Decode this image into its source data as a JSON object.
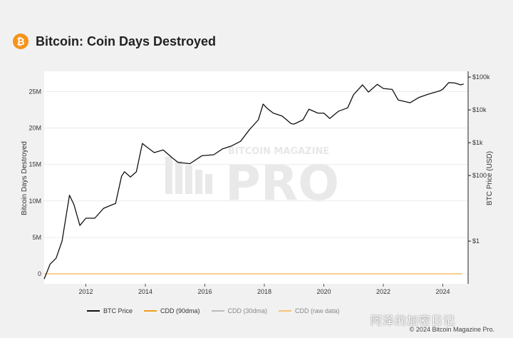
{
  "header": {
    "logo_symbol": "₿",
    "title": "Bitcoin: Coin Days Destroyed"
  },
  "watermark": {
    "brand_top": "BITCOIN MAGAZINE",
    "brand_main": "PRO",
    "social": "阿泽的加密日记"
  },
  "footer": {
    "copyright": "© 2024 Bitcoin Magazine Pro."
  },
  "colors": {
    "btc_price": "#111111",
    "cdd90": "#f2a01c",
    "cdd30": "#bbbbbb",
    "cdd_raw": "#f5c27a",
    "accent": "#f7931a"
  },
  "legend": [
    {
      "label": "BTC Price",
      "color": "#111111"
    },
    {
      "label": "CDD (90dma)",
      "color": "#f2a01c"
    },
    {
      "label": "CDD (30dma)",
      "color": "#bbbbbb"
    },
    {
      "label": "CDD (raw data)",
      "color": "#f5c27a"
    }
  ],
  "chart_data": {
    "type": "line",
    "title": "Bitcoin: Coin Days Destroyed",
    "xlabel": "",
    "ylabel_left": "Bitcoin Days Destroyed",
    "ylabel_right": "BTC Price (USD)",
    "x_range": [
      2010.6,
      2024.85
    ],
    "x_ticks": [
      2012,
      2014,
      2016,
      2018,
      2020,
      2022,
      2024
    ],
    "y_left_range": [
      0,
      27000000
    ],
    "y_left_ticks": [
      {
        "value": 0,
        "label": "0"
      },
      {
        "value": 5000000,
        "label": "5M"
      },
      {
        "value": 10000000,
        "label": "10M"
      },
      {
        "value": 15000000,
        "label": "15M"
      },
      {
        "value": 20000000,
        "label": "20M"
      },
      {
        "value": 25000000,
        "label": "25M"
      }
    ],
    "y_right_scale": "log",
    "y_right_range": [
      0.05,
      150000
    ],
    "y_right_ticks": [
      {
        "value": 1,
        "label": "$1"
      },
      {
        "value": 100,
        "label": "$100"
      },
      {
        "value": 1000,
        "label": "$1k"
      },
      {
        "value": 10000,
        "label": "$10k"
      },
      {
        "value": 100000,
        "label": "$100k"
      }
    ],
    "series": [
      {
        "name": "BTC Price",
        "axis": "right",
        "x": [
          2010.6,
          2010.8,
          2011.0,
          2011.2,
          2011.45,
          2011.6,
          2011.8,
          2012.0,
          2012.3,
          2012.6,
          2012.9,
          2013.0,
          2013.2,
          2013.3,
          2013.5,
          2013.7,
          2013.9,
          2014.0,
          2014.3,
          2014.6,
          2014.9,
          2015.1,
          2015.5,
          2015.9,
          2016.3,
          2016.6,
          2016.9,
          2017.2,
          2017.5,
          2017.8,
          2017.96,
          2018.1,
          2018.3,
          2018.6,
          2018.9,
          2019.0,
          2019.3,
          2019.5,
          2019.8,
          2020.0,
          2020.2,
          2020.5,
          2020.8,
          2021.0,
          2021.3,
          2021.5,
          2021.8,
          2022.0,
          2022.3,
          2022.5,
          2022.9,
          2023.2,
          2023.5,
          2023.9,
          2024.0,
          2024.2,
          2024.4,
          2024.6,
          2024.7
        ],
        "y": [
          0.07,
          0.2,
          0.3,
          1.0,
          25,
          13,
          3,
          5,
          5,
          10,
          13,
          14,
          95,
          130,
          90,
          130,
          950,
          800,
          500,
          600,
          350,
          250,
          230,
          400,
          430,
          650,
          800,
          1100,
          2500,
          5000,
          15000,
          11000,
          8000,
          6500,
          3800,
          3700,
          5000,
          10500,
          8000,
          8000,
          5500,
          9200,
          11500,
          29000,
          58000,
          35000,
          60000,
          45000,
          42000,
          20000,
          16500,
          24000,
          30000,
          38000,
          43000,
          68000,
          66000,
          58000,
          62000
        ]
      },
      {
        "name": "CDD (90dma)",
        "axis": "left",
        "x": [
          2010.6,
          2010.7,
          2010.85,
          2010.95,
          2011.05,
          2011.2,
          2011.4,
          2011.55,
          2011.7,
          2011.85,
          2012.0,
          2012.2,
          2012.4,
          2012.6,
          2012.75,
          2012.9,
          2013.05,
          2013.2,
          2013.3,
          2013.4,
          2013.55,
          2013.7,
          2013.85,
          2014.0,
          2014.08,
          2014.15,
          2014.2,
          2014.35,
          2014.5,
          2014.6,
          2014.75,
          2014.9,
          2015.0,
          2015.15,
          2015.3,
          2015.45,
          2015.6,
          2015.75,
          2015.9,
          2016.05,
          2016.2,
          2016.35,
          2016.5,
          2016.65,
          2016.8,
          2016.95,
          2017.05,
          2017.15,
          2017.25,
          2017.35,
          2017.45,
          2017.55,
          2017.65,
          2017.72,
          2017.78,
          2017.85,
          2017.9,
          2017.96,
          2018.0,
          2018.05,
          2018.12,
          2018.2,
          2018.3,
          2018.4,
          2018.5,
          2018.6,
          2018.7,
          2018.8,
          2018.9,
          2019.0,
          2019.1,
          2019.25,
          2019.35,
          2019.45,
          2019.55,
          2019.65,
          2019.75,
          2019.85,
          2019.95,
          2020.05,
          2020.15,
          2020.25,
          2020.35,
          2020.45,
          2020.55,
          2020.65,
          2020.75,
          2020.85,
          2020.95,
          2021.0,
          2021.05,
          2021.1,
          2021.2,
          2021.3,
          2021.4,
          2021.45,
          2021.5,
          2021.6,
          2021.7,
          2021.8,
          2021.9,
          2022.0,
          2022.1,
          2022.2,
          2022.3,
          2022.4,
          2022.5,
          2022.6,
          2022.7,
          2022.8,
          2022.9,
          2023.0,
          2023.1,
          2023.2,
          2023.3,
          2023.4,
          2023.5,
          2023.6,
          2023.7,
          2023.8,
          2023.9,
          2024.0,
          2024.05,
          2024.1,
          2024.15,
          2024.2,
          2024.25,
          2024.3,
          2024.35,
          2024.42,
          2024.5,
          2024.55,
          2024.62,
          2024.65
        ],
        "y": [
          0.3,
          1.0,
          1.5,
          1.4,
          1.3,
          1.6,
          2.2,
          2.0,
          3.5,
          2.6,
          3.2,
          3.5,
          4.5,
          3.0,
          2.5,
          3.0,
          3.5,
          5.0,
          8.0,
          11.0,
          7.0,
          5.0,
          3.2,
          5.0,
          9.0,
          12.8,
          12.0,
          9.0,
          6.0,
          4.5,
          9.0,
          5.5,
          4.5,
          5.5,
          6.2,
          5.8,
          6.2,
          4.5,
          5.0,
          6.0,
          8.5,
          9.5,
          7.5,
          9.0,
          6.5,
          9.5,
          8.5,
          9.0,
          7.5,
          8.0,
          6.0,
          8.5,
          6.5,
          10.0,
          14.0,
          18.0,
          20.0,
          25.0,
          22.0,
          26.0,
          18.0,
          21.0,
          15.0,
          17.0,
          14.0,
          12.0,
          8.5,
          10.5,
          12.0,
          9.0,
          5.8,
          8.0,
          12.0,
          13.5,
          11.0,
          9.5,
          7.0,
          10.0,
          13.5,
          12.0,
          9.5,
          11.5,
          13.0,
          9.5,
          11.0,
          8.5,
          12.0,
          14.0,
          18.0,
          22.0,
          23.0,
          22.0,
          18.0,
          16.0,
          13.5,
          11.5,
          10.5,
          10.0,
          11.5,
          12.0,
          11.0,
          10.0,
          10.5,
          11.0,
          12.0,
          11.0,
          9.5,
          10.0,
          11.5,
          10.0,
          9.0,
          7.0,
          6.5,
          8.5,
          9.5,
          8.0,
          9.0,
          8.0,
          7.5,
          9.0,
          7.0,
          9.0,
          11.0,
          12.0,
          13.5,
          16.0,
          20.0,
          22.0,
          18.5,
          23.0,
          17.0,
          16.0,
          18.0,
          18.5
        ]
      }
    ]
  }
}
